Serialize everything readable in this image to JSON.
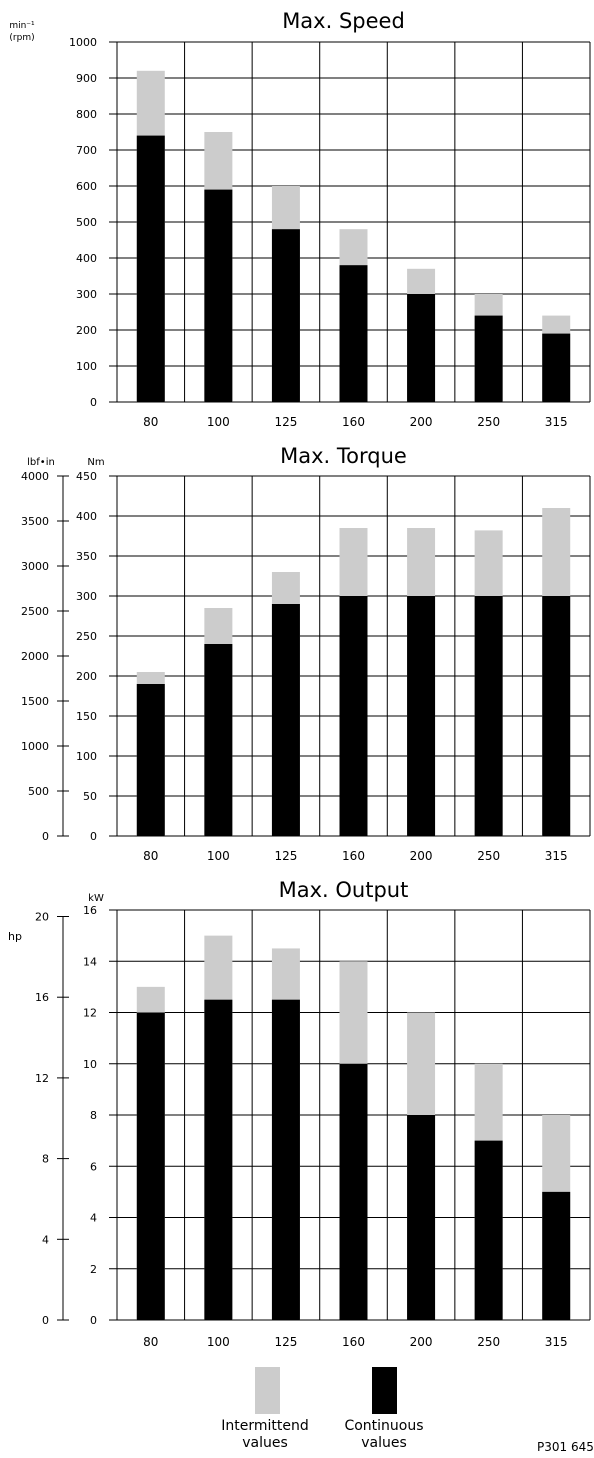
{
  "colors": {
    "intermittent": "#cccccc",
    "continuous": "#000000",
    "grid": "#000000"
  },
  "legend": {
    "intermittent_line1": "Intermittend",
    "intermittent_line2": "values",
    "continuous_line1": "Continuous",
    "continuous_line2": "values"
  },
  "figure_code": "P301 645",
  "chart_data": [
    {
      "type": "bar",
      "title": "Max. Speed",
      "unit_line1": "min⁻¹",
      "unit_line2": "(rpm)",
      "categories": [
        "80",
        "100",
        "125",
        "160",
        "200",
        "250",
        "315"
      ],
      "ylim": [
        0,
        1000
      ],
      "yticks": [
        0,
        100,
        200,
        300,
        400,
        500,
        600,
        700,
        800,
        900,
        1000
      ],
      "series": [
        {
          "values": [
            740,
            590,
            480,
            380,
            300,
            240,
            190
          ]
        },
        {
          "values": [
            920,
            750,
            600,
            480,
            370,
            300,
            240
          ]
        }
      ],
      "grid": true
    },
    {
      "type": "bar",
      "title": "Max. Torque",
      "unit_left": "lbf•in",
      "unit_right": "Nm",
      "categories": [
        "80",
        "100",
        "125",
        "160",
        "200",
        "250",
        "315"
      ],
      "ylim": [
        0,
        450
      ],
      "yticks": [
        0,
        50,
        100,
        150,
        200,
        250,
        300,
        350,
        400,
        450
      ],
      "secondary_ticks": [
        0,
        500,
        1000,
        1500,
        2000,
        2500,
        3000,
        3500,
        4000
      ],
      "series": [
        {
          "values": [
            190,
            240,
            290,
            300,
            300,
            300,
            300
          ]
        },
        {
          "values": [
            205,
            285,
            330,
            385,
            385,
            382,
            410
          ]
        }
      ],
      "grid": true
    },
    {
      "type": "bar",
      "title": "Max. Output",
      "unit_left": "hp",
      "unit_right": "kW",
      "categories": [
        "80",
        "100",
        "125",
        "160",
        "200",
        "250",
        "315"
      ],
      "ylim": [
        0,
        16
      ],
      "yticks": [
        0,
        2,
        4,
        6,
        8,
        10,
        12,
        14,
        16
      ],
      "secondary_ticks": [
        0,
        4,
        8,
        12,
        16,
        20
      ],
      "series": [
        {
          "values": [
            12,
            12.5,
            12.5,
            10,
            8,
            7,
            5
          ]
        },
        {
          "values": [
            13,
            15,
            14.5,
            14,
            12,
            10,
            8
          ]
        }
      ],
      "grid": true
    }
  ]
}
